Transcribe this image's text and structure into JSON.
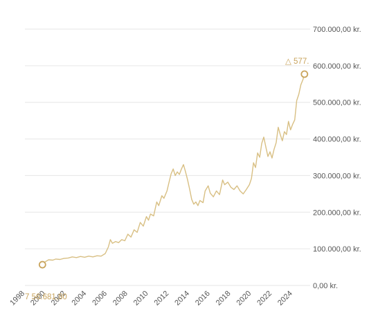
{
  "colors": {
    "line": "#d8bf83",
    "grid": "#e6e6e6",
    "text": "#555555",
    "annotation": "#c9a45c"
  },
  "chart_data": {
    "type": "line",
    "title": "",
    "xlabel": "",
    "ylabel": "",
    "xlim": [
      1998,
      2025.5
    ],
    "ylim": [
      0,
      700000
    ],
    "y_ticks": [
      {
        "value": 700000,
        "label": "700.000,00 kr."
      },
      {
        "value": 600000,
        "label": "600.000,00 kr."
      },
      {
        "value": 500000,
        "label": "500.000,00 kr."
      },
      {
        "value": 400000,
        "label": "400.000,00 kr."
      },
      {
        "value": 300000,
        "label": "300.000,00 kr."
      },
      {
        "value": 200000,
        "label": "200.000,00 kr."
      },
      {
        "value": 100000,
        "label": "100.000,00 kr."
      },
      {
        "value": 0,
        "label": "0,00 kr."
      }
    ],
    "x_ticks": [
      {
        "value": 1998,
        "label": "1998"
      },
      {
        "value": 2000,
        "label": "2000"
      },
      {
        "value": 2002,
        "label": "2002"
      },
      {
        "value": 2004,
        "label": "2004"
      },
      {
        "value": 2006,
        "label": "2006"
      },
      {
        "value": 2008,
        "label": "2008"
      },
      {
        "value": 2010,
        "label": "2010"
      },
      {
        "value": 2012,
        "label": "2012"
      },
      {
        "value": 2014,
        "label": "2014"
      },
      {
        "value": 2016,
        "label": "2016"
      },
      {
        "value": 2018,
        "label": "2018"
      },
      {
        "value": 2020,
        "label": "2020"
      },
      {
        "value": 2022,
        "label": "2022"
      },
      {
        "value": 2024,
        "label": "2024"
      }
    ],
    "grid": true,
    "series": [
      {
        "points": [
          [
            1999.7,
            56681.8
          ],
          [
            2000.0,
            65000
          ],
          [
            2000.3,
            70000
          ],
          [
            2000.7,
            69000
          ],
          [
            2001.0,
            72000
          ],
          [
            2001.4,
            71000
          ],
          [
            2001.8,
            74000
          ],
          [
            2002.2,
            75000
          ],
          [
            2002.6,
            78000
          ],
          [
            2003.0,
            76000
          ],
          [
            2003.4,
            79000
          ],
          [
            2003.8,
            77000
          ],
          [
            2004.2,
            80000
          ],
          [
            2004.6,
            78000
          ],
          [
            2005.0,
            81000
          ],
          [
            2005.4,
            80000
          ],
          [
            2005.8,
            87000
          ],
          [
            2006.1,
            105000
          ],
          [
            2006.3,
            125000
          ],
          [
            2006.5,
            115000
          ],
          [
            2006.8,
            120000
          ],
          [
            2007.1,
            117000
          ],
          [
            2007.4,
            125000
          ],
          [
            2007.7,
            122000
          ],
          [
            2008.0,
            140000
          ],
          [
            2008.3,
            132000
          ],
          [
            2008.6,
            152000
          ],
          [
            2008.9,
            145000
          ],
          [
            2009.2,
            172000
          ],
          [
            2009.5,
            162000
          ],
          [
            2009.8,
            188000
          ],
          [
            2010.0,
            178000
          ],
          [
            2010.2,
            195000
          ],
          [
            2010.5,
            190000
          ],
          [
            2010.8,
            228000
          ],
          [
            2011.0,
            218000
          ],
          [
            2011.3,
            245000
          ],
          [
            2011.5,
            238000
          ],
          [
            2011.8,
            258000
          ],
          [
            2012.0,
            282000
          ],
          [
            2012.2,
            305000
          ],
          [
            2012.4,
            318000
          ],
          [
            2012.6,
            300000
          ],
          [
            2012.8,
            310000
          ],
          [
            2013.0,
            303000
          ],
          [
            2013.2,
            318000
          ],
          [
            2013.4,
            330000
          ],
          [
            2013.6,
            310000
          ],
          [
            2013.8,
            288000
          ],
          [
            2014.0,
            262000
          ],
          [
            2014.2,
            235000
          ],
          [
            2014.4,
            222000
          ],
          [
            2014.6,
            228000
          ],
          [
            2014.8,
            218000
          ],
          [
            2015.0,
            232000
          ],
          [
            2015.3,
            226000
          ],
          [
            2015.5,
            258000
          ],
          [
            2015.8,
            272000
          ],
          [
            2016.0,
            252000
          ],
          [
            2016.3,
            242000
          ],
          [
            2016.6,
            258000
          ],
          [
            2016.9,
            248000
          ],
          [
            2017.2,
            288000
          ],
          [
            2017.4,
            275000
          ],
          [
            2017.7,
            282000
          ],
          [
            2018.0,
            268000
          ],
          [
            2018.3,
            262000
          ],
          [
            2018.6,
            272000
          ],
          [
            2018.9,
            258000
          ],
          [
            2019.2,
            250000
          ],
          [
            2019.5,
            262000
          ],
          [
            2019.8,
            275000
          ],
          [
            2020.0,
            292000
          ],
          [
            2020.2,
            335000
          ],
          [
            2020.4,
            322000
          ],
          [
            2020.6,
            362000
          ],
          [
            2020.8,
            350000
          ],
          [
            2021.0,
            388000
          ],
          [
            2021.2,
            405000
          ],
          [
            2021.4,
            378000
          ],
          [
            2021.6,
            352000
          ],
          [
            2021.8,
            365000
          ],
          [
            2022.0,
            348000
          ],
          [
            2022.2,
            372000
          ],
          [
            2022.4,
            390000
          ],
          [
            2022.6,
            432000
          ],
          [
            2022.8,
            412000
          ],
          [
            2023.0,
            395000
          ],
          [
            2023.2,
            420000
          ],
          [
            2023.4,
            412000
          ],
          [
            2023.6,
            448000
          ],
          [
            2023.8,
            425000
          ],
          [
            2024.0,
            440000
          ],
          [
            2024.2,
            452000
          ],
          [
            2024.4,
            505000
          ],
          [
            2024.6,
            522000
          ],
          [
            2024.8,
            548000
          ],
          [
            2025.0,
            562000
          ],
          [
            2025.15,
            577000
          ]
        ]
      }
    ],
    "annotations": {
      "start_label": "56.681,80",
      "start_prefix": "7",
      "end_label": "577.",
      "end_prefix": "△"
    },
    "markers": [
      {
        "x": 1999.7,
        "y": 56681.8
      },
      {
        "x": 2025.15,
        "y": 577000
      }
    ]
  }
}
